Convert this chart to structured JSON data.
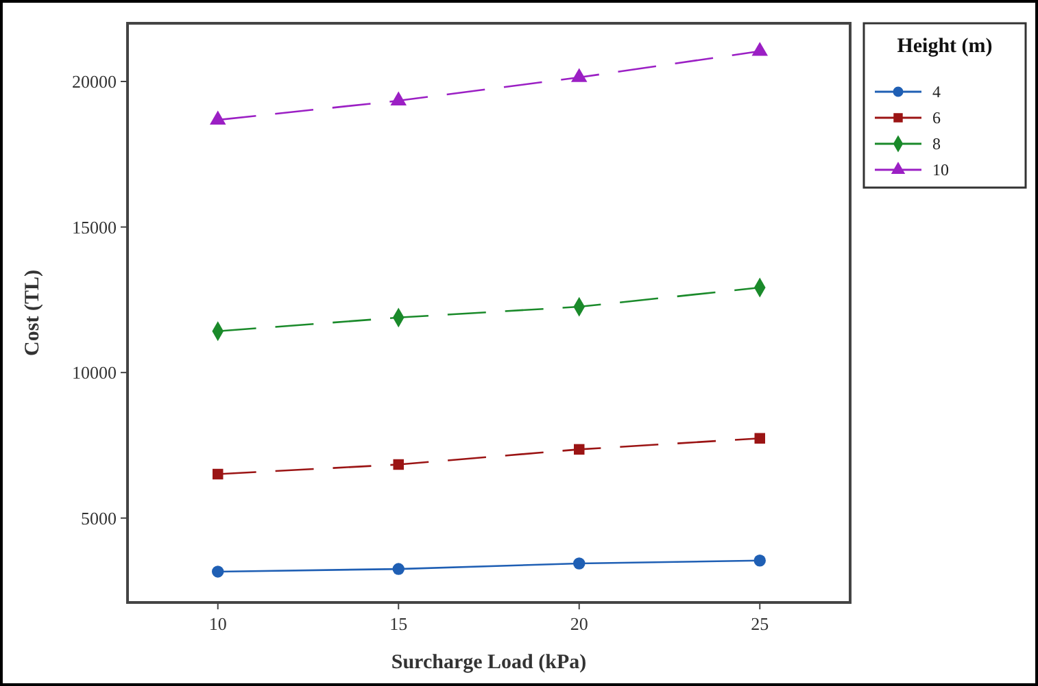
{
  "chart_data": {
    "type": "line",
    "xlabel": "Surcharge Load (kPa)",
    "ylabel": "Cost (TL)",
    "legend_title": "Height (m)",
    "legend": "top right",
    "x": [
      10,
      15,
      20,
      25
    ],
    "xlim": [
      7.5,
      27.5
    ],
    "xticks": [
      10,
      15,
      20,
      25
    ],
    "ylim": [
      2100,
      22000
    ],
    "yticks": [
      5000,
      10000,
      15000,
      20000
    ],
    "grid": false,
    "series": [
      {
        "name": "4",
        "color": "#1f5fb4",
        "marker": "circle",
        "line_style": "solid",
        "values": [
          3160,
          3250,
          3440,
          3540
        ]
      },
      {
        "name": "6",
        "color": "#9b1414",
        "marker": "square",
        "line_style": "dashed",
        "values": [
          6510,
          6840,
          7360,
          7740
        ]
      },
      {
        "name": "8",
        "color": "#1a8a2a",
        "marker": "diamond",
        "line_style": "dashed",
        "values": [
          11420,
          11890,
          12260,
          12920
        ]
      },
      {
        "name": "10",
        "color": "#9b1fc4",
        "marker": "triangle",
        "line_style": "dashed",
        "values": [
          18680,
          19340,
          20140,
          21040
        ]
      }
    ]
  }
}
